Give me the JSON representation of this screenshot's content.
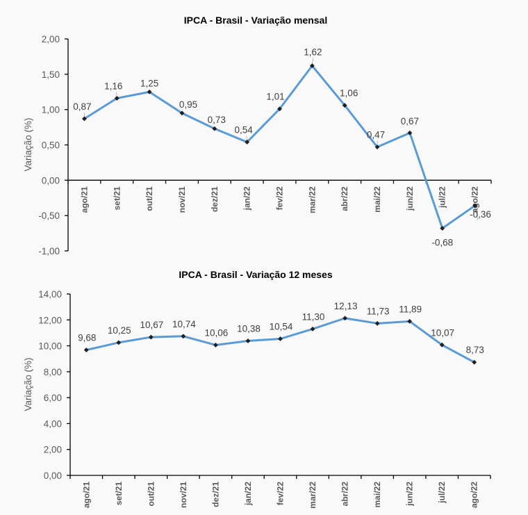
{
  "chart_data": [
    {
      "type": "line",
      "title": "IPCA - Brasil - Variação mensal",
      "xlabel": "",
      "ylabel": "Variação (%)",
      "ylim": [
        -1.0,
        2.0
      ],
      "ystep": 0.5,
      "yticks": [
        "-1,00",
        "-0,50",
        "0,00",
        "0,50",
        "1,00",
        "1,50",
        "2,00"
      ],
      "grid": false,
      "categories": [
        "ago/21",
        "set/21",
        "out/21",
        "nov/21",
        "dez/21",
        "jan/22",
        "fev/22",
        "mar/22",
        "abr/22",
        "mai/22",
        "jun/22",
        "jul/22",
        "ago/22"
      ],
      "series": [
        {
          "name": "Variação mensal",
          "color": "#5b9bd5",
          "values": [
            0.87,
            1.16,
            1.25,
            0.95,
            0.73,
            0.54,
            1.01,
            1.62,
            1.06,
            0.47,
            0.67,
            -0.68,
            -0.36
          ],
          "labels": [
            "0,87",
            "1,16",
            "1,25",
            "0,95",
            "0,73",
            "0,54",
            "1,01",
            "1,62",
            "1,06",
            "0,47",
            "0,67",
            "-0,68",
            "-0,36"
          ]
        }
      ]
    },
    {
      "type": "line",
      "title": "IPCA - Brasil - Variação 12 meses",
      "xlabel": "",
      "ylabel": "Variação (%)",
      "ylim": [
        0.0,
        14.0
      ],
      "ystep": 2.0,
      "yticks": [
        "0,00",
        "2,00",
        "4,00",
        "6,00",
        "8,00",
        "10,00",
        "12,00",
        "14,00"
      ],
      "grid": false,
      "categories": [
        "ago/21",
        "set/21",
        "out/21",
        "nov/21",
        "dez/21",
        "jan/22",
        "fev/22",
        "mar/22",
        "abr/22",
        "mai/22",
        "jun/22",
        "jul/22",
        "ago/22"
      ],
      "series": [
        {
          "name": "Variação 12 meses",
          "color": "#5b9bd5",
          "values": [
            9.68,
            10.25,
            10.67,
            10.74,
            10.06,
            10.38,
            10.54,
            11.3,
            12.13,
            11.73,
            11.89,
            10.07,
            8.73
          ],
          "labels": [
            "9,68",
            "10,25",
            "10,67",
            "10,74",
            "10,06",
            "10,38",
            "10,54",
            "11,30",
            "12,13",
            "11,73",
            "11,89",
            "10,07",
            "8,73"
          ]
        }
      ]
    }
  ]
}
